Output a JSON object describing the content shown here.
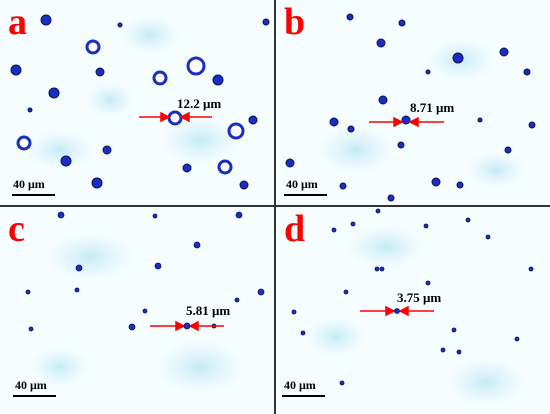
{
  "panels": [
    {
      "id": "a",
      "label": "a",
      "measurement": "12.2 μm",
      "scale_bar": "40 μm"
    },
    {
      "id": "b",
      "label": "b",
      "measurement": "8.71 μm",
      "scale_bar": "40 μm"
    },
    {
      "id": "c",
      "label": "c",
      "measurement": "5.81 μm",
      "scale_bar": "40 μm"
    },
    {
      "id": "d",
      "label": "d",
      "measurement": "3.75 μm",
      "scale_bar": "40 μm"
    }
  ],
  "colors": {
    "panel_label": "#ff0000",
    "arrow": "#ff0000",
    "particle": "#1a2fbf",
    "background_haze": "#bfe8f5"
  }
}
